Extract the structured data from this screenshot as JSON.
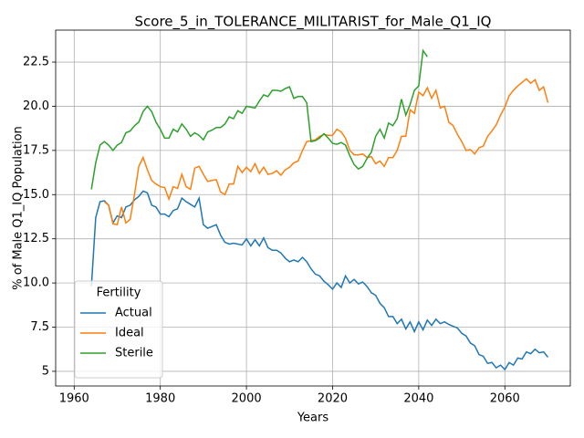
{
  "chart_data": {
    "type": "line",
    "title": "Score_5_in_TOLERANCE_MILITARIST_for_Male_Q1_IQ",
    "xlabel": "Years",
    "ylabel": "% of Male Q1_IQ Population",
    "legend_title": "Fertility",
    "legend": "lower left",
    "grid": true,
    "xlim": [
      1955.7,
      2075.2
    ],
    "ylim": [
      4.17,
      24.31
    ],
    "xticks": [
      1960,
      1980,
      2000,
      2020,
      2040,
      2060
    ],
    "yticks": [
      5.0,
      {
        "value": 7.5,
        "label": "7.5"
      },
      {
        "value": 10,
        "label": "10.0"
      },
      {
        "value": 12.5,
        "label": "12.5"
      },
      {
        "value": 15,
        "label": "15.0"
      },
      {
        "value": 17.5,
        "label": "17.5"
      },
      {
        "value": 20,
        "label": "20.0"
      },
      {
        "value": 22.5,
        "label": "22.5"
      }
    ],
    "x": [
      1964,
      1965,
      1966,
      1967,
      1968,
      1969,
      1970,
      1971,
      1972,
      1973,
      1974,
      1975,
      1976,
      1977,
      1978,
      1979,
      1980,
      1981,
      1982,
      1983,
      1984,
      1985,
      1986,
      1987,
      1988,
      1989,
      1990,
      1991,
      1992,
      1993,
      1994,
      1995,
      1996,
      1997,
      1998,
      1999,
      2000,
      2001,
      2002,
      2003,
      2004,
      2005,
      2006,
      2007,
      2008,
      2009,
      2010,
      2011,
      2012,
      2013,
      2014,
      2015,
      2016,
      2017,
      2018,
      2019,
      2020,
      2021,
      2022,
      2023,
      2024,
      2025,
      2026,
      2027,
      2028,
      2029,
      2030,
      2031,
      2032,
      2033,
      2034,
      2035,
      2036,
      2037,
      2038,
      2039,
      2040,
      2041,
      2042,
      2043,
      2044,
      2045,
      2046,
      2047,
      2048,
      2049,
      2050,
      2051,
      2052,
      2053,
      2054,
      2055,
      2056,
      2057,
      2058,
      2059,
      2060,
      2061,
      2062,
      2063,
      2064,
      2065,
      2066,
      2067,
      2068,
      2069,
      2070
    ],
    "series": [
      {
        "name": "Actual",
        "color": "#1f77b4",
        "values": [
          9.8,
          13.7,
          14.6,
          14.65,
          14.4,
          13.4,
          13.8,
          13.7,
          14.3,
          14.4,
          14.7,
          14.9,
          15.2,
          15.1,
          14.4,
          14.3,
          13.9,
          13.9,
          13.75,
          14.1,
          14.2,
          14.8,
          14.6,
          14.45,
          14.3,
          14.8,
          13.3,
          13.1,
          13.2,
          13.3,
          12.7,
          12.3,
          12.2,
          12.25,
          12.2,
          12.15,
          12.5,
          12.1,
          12.45,
          12.1,
          12.55,
          12.0,
          11.85,
          11.85,
          11.7,
          11.4,
          11.2,
          11.3,
          11.2,
          11.45,
          11.2,
          10.8,
          10.5,
          10.4,
          10.1,
          9.9,
          9.65,
          10.0,
          9.75,
          10.4,
          10.0,
          10.2,
          9.95,
          10.05,
          9.8,
          9.45,
          9.3,
          8.85,
          8.6,
          8.1,
          8.1,
          7.7,
          7.95,
          7.4,
          7.8,
          7.25,
          7.8,
          7.35,
          7.9,
          7.6,
          7.95,
          7.7,
          7.8,
          7.65,
          7.55,
          7.45,
          7.15,
          7.0,
          6.6,
          6.45,
          5.95,
          5.85,
          5.45,
          5.5,
          5.2,
          5.35,
          5.1,
          5.5,
          5.35,
          5.75,
          5.7,
          6.1,
          6.0,
          6.25,
          6.05,
          6.1,
          5.8
        ]
      },
      {
        "name": "Ideal",
        "color": "#ff7f0e",
        "values": [
          null,
          null,
          null,
          14.6,
          14.4,
          13.35,
          13.3,
          14.3,
          13.4,
          13.6,
          15.0,
          16.6,
          17.1,
          16.4,
          15.8,
          15.6,
          15.45,
          15.4,
          14.75,
          15.45,
          15.35,
          16.15,
          15.45,
          15.3,
          16.5,
          16.6,
          16.15,
          15.75,
          15.8,
          15.85,
          15.15,
          15.0,
          15.6,
          15.6,
          16.6,
          16.25,
          16.55,
          16.3,
          16.75,
          16.2,
          16.55,
          16.15,
          16.2,
          16.35,
          16.1,
          16.4,
          16.55,
          16.8,
          16.9,
          17.5,
          18.0,
          18.05,
          18.1,
          18.3,
          18.4,
          18.35,
          18.35,
          18.7,
          18.55,
          18.2,
          17.5,
          17.25,
          17.25,
          17.3,
          17.1,
          17.15,
          16.75,
          16.9,
          16.6,
          17.1,
          17.1,
          17.5,
          18.3,
          18.3,
          19.8,
          19.6,
          20.8,
          20.6,
          21.05,
          20.45,
          20.9,
          19.9,
          20.0,
          19.1,
          18.9,
          18.4,
          18.0,
          17.5,
          17.55,
          17.3,
          17.65,
          17.75,
          18.3,
          18.6,
          18.95,
          19.5,
          19.95,
          20.6,
          20.9,
          21.15,
          21.35,
          21.55,
          21.3,
          21.5,
          20.9,
          21.1,
          20.2
        ]
      },
      {
        "name": "Sterile",
        "color": "#2ca02c",
        "values": [
          15.3,
          16.8,
          17.8,
          18.0,
          17.8,
          17.5,
          17.8,
          17.95,
          18.5,
          18.6,
          18.9,
          19.1,
          19.7,
          20.0,
          19.7,
          19.1,
          18.7,
          18.2,
          18.2,
          18.7,
          18.55,
          19.0,
          18.7,
          18.3,
          18.5,
          18.35,
          18.1,
          18.55,
          18.65,
          18.8,
          18.8,
          19.0,
          19.4,
          19.3,
          19.75,
          19.6,
          20.0,
          19.95,
          19.9,
          20.3,
          20.65,
          20.55,
          20.9,
          20.9,
          20.85,
          21.0,
          21.1,
          20.45,
          20.55,
          20.55,
          20.2,
          18.0,
          18.05,
          18.2,
          18.45,
          18.2,
          17.9,
          17.85,
          17.95,
          17.8,
          17.2,
          16.7,
          16.45,
          16.6,
          17.05,
          17.4,
          18.3,
          18.7,
          18.2,
          19.05,
          18.9,
          19.3,
          20.4,
          19.5,
          20.1,
          20.9,
          21.15,
          23.15,
          22.8,
          null,
          null,
          null,
          null,
          null,
          null,
          null,
          null,
          null,
          null,
          null,
          null,
          null,
          null,
          null,
          null,
          null,
          null,
          null,
          null,
          null,
          null,
          null,
          null,
          null,
          null,
          null,
          null
        ]
      }
    ]
  }
}
